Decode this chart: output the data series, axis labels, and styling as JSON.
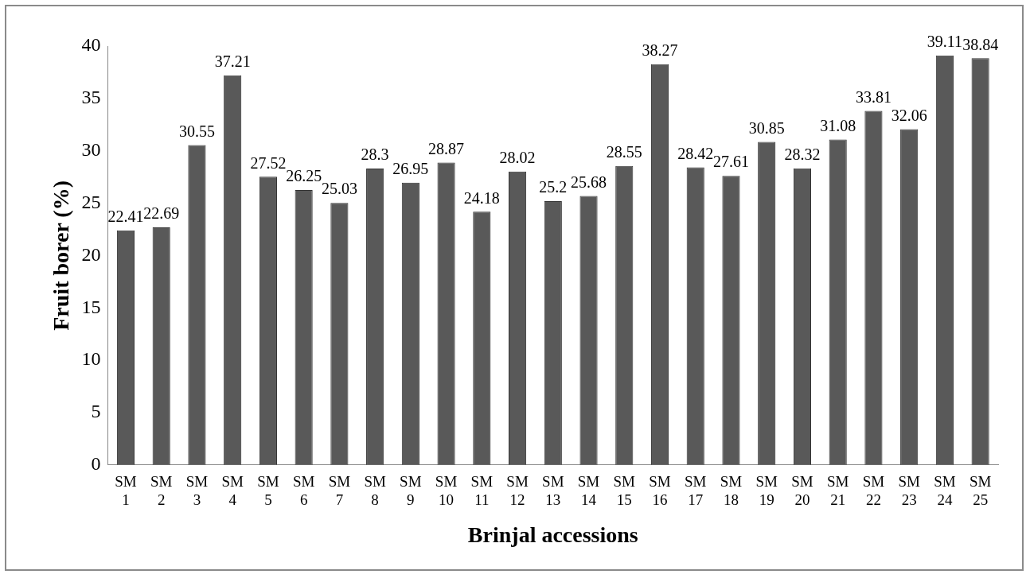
{
  "chart_data": {
    "type": "bar",
    "xlabel": "Brinjal accessions",
    "ylabel": "Fruit borer (%)",
    "categories": [
      "SM 1",
      "SM 2",
      "SM 3",
      "SM 4",
      "SM 5",
      "SM 6",
      "SM 7",
      "SM 8",
      "SM 9",
      "SM 10",
      "SM 11",
      "SM 12",
      "SM 13",
      "SM 14",
      "SM 15",
      "SM 16",
      "SM 17",
      "SM 18",
      "SM 19",
      "SM 20",
      "SM 21",
      "SM 22",
      "SM 23",
      "SM 24",
      "SM 25"
    ],
    "values": [
      22.41,
      22.69,
      30.55,
      37.21,
      27.52,
      26.25,
      25.03,
      28.3,
      26.95,
      28.87,
      24.18,
      28.02,
      25.2,
      25.68,
      28.55,
      38.27,
      28.42,
      27.61,
      30.85,
      28.32,
      31.08,
      33.81,
      32.06,
      39.11,
      38.84
    ],
    "color": "#595959",
    "ylim": [
      0,
      40
    ],
    "yticks": [
      0,
      5,
      10,
      15,
      20,
      25,
      30,
      35,
      40
    ],
    "data_labels": true
  }
}
